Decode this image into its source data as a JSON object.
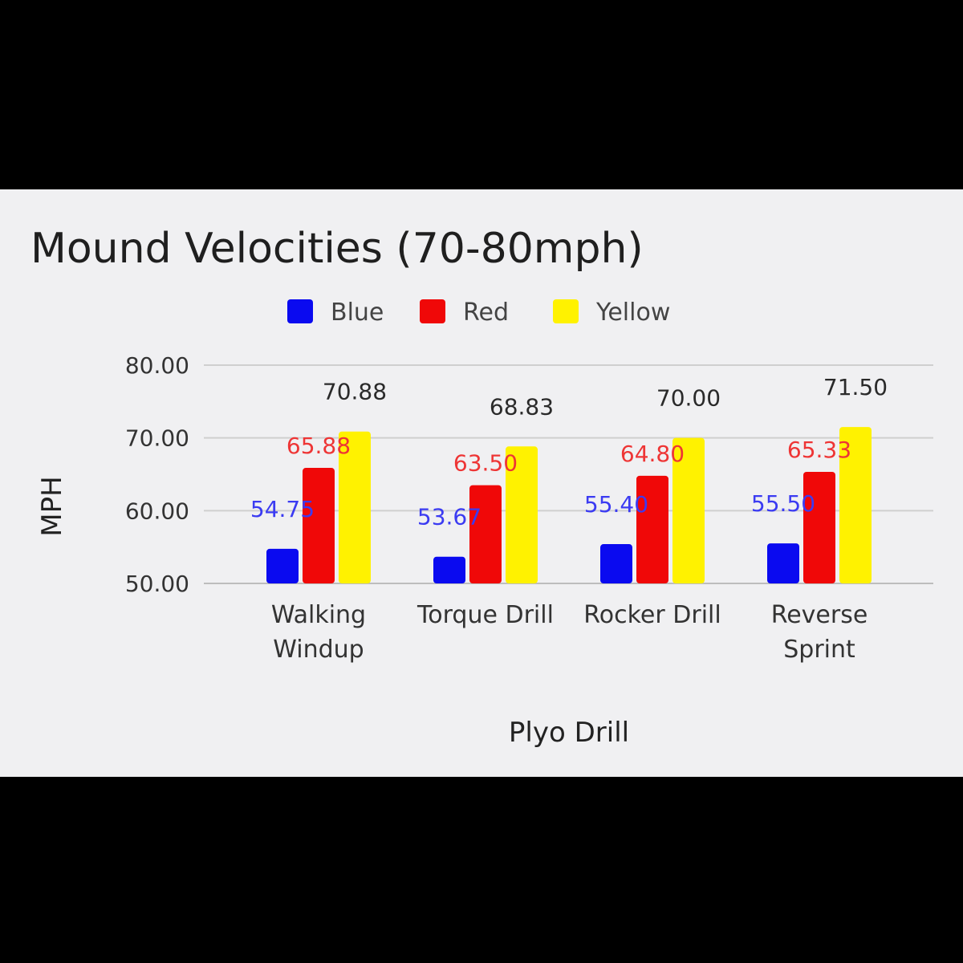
{
  "chart_data": {
    "type": "bar",
    "title": "Mound Velocities (70-80mph)",
    "xlabel": "Plyo Drill",
    "ylabel": "MPH",
    "ylim": [
      50,
      80
    ],
    "yticks": [
      "50.00",
      "60.00",
      "70.00",
      "80.00"
    ],
    "grid": true,
    "legend_position": "top",
    "categories": [
      [
        "Walking",
        "Windup"
      ],
      [
        "Torque Drill"
      ],
      [
        "Rocker Drill"
      ],
      [
        "Reverse",
        "Sprint"
      ]
    ],
    "series": [
      {
        "name": "Blue",
        "color": "#0a0af0",
        "label_color": "#3b3bf2",
        "values": [
          54.75,
          53.67,
          55.4,
          55.5
        ],
        "labels": [
          "54.75",
          "53.67",
          "55.40",
          "55.50"
        ]
      },
      {
        "name": "Red",
        "color": "#f00808",
        "label_color": "#ee3535",
        "values": [
          65.88,
          63.5,
          64.8,
          65.33
        ],
        "labels": [
          "65.88",
          "63.50",
          "64.80",
          "65.33"
        ]
      },
      {
        "name": "Yellow",
        "color": "#fff200",
        "label_color": "#2a2a2a",
        "values": [
          70.88,
          68.83,
          70.0,
          71.5
        ],
        "labels": [
          "70.88",
          "68.83",
          "70.00",
          "71.50"
        ]
      }
    ]
  }
}
